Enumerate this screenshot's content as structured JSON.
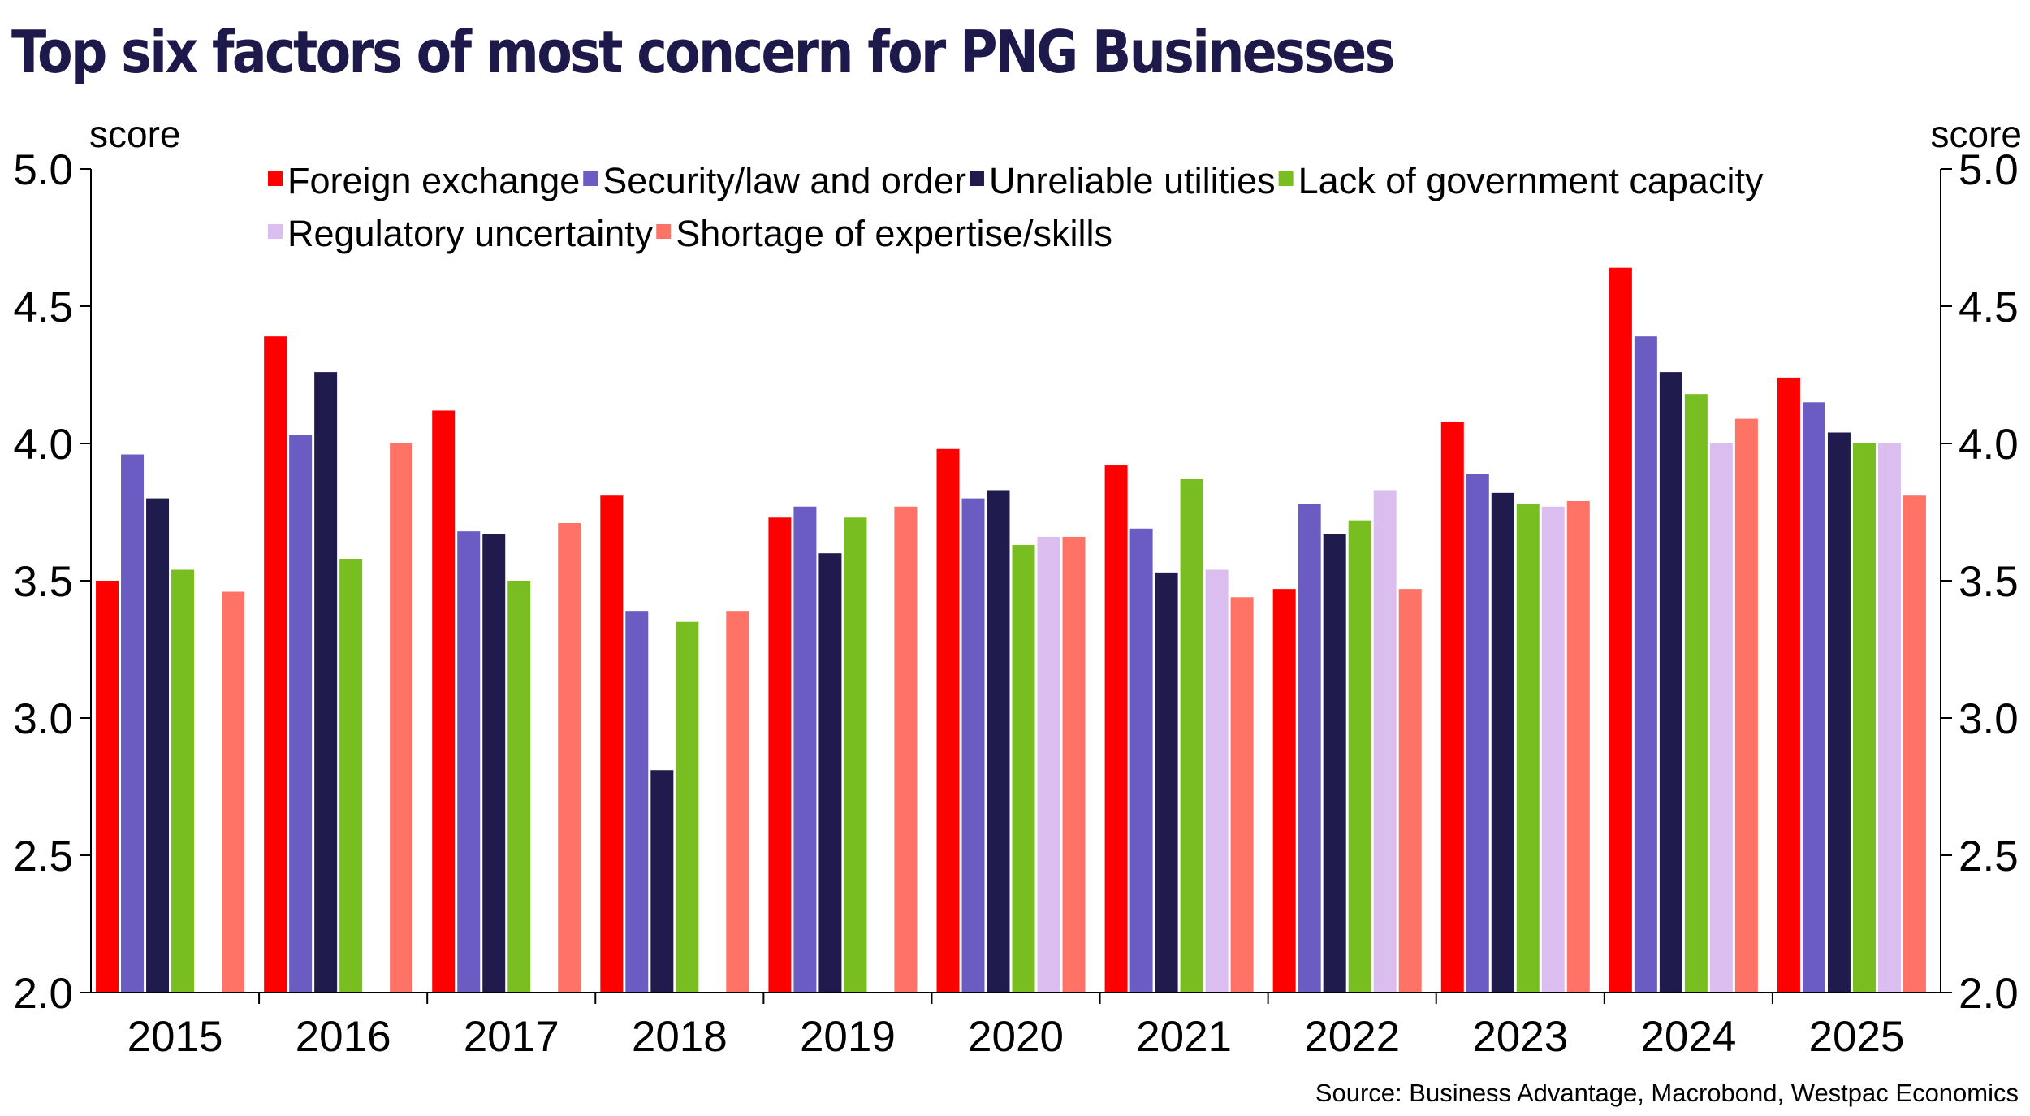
{
  "title": "Top six factors of most concern for PNG Businesses",
  "source": "Source: Business Advantage, Macrobond, Westpac Economics",
  "chart_data": {
    "type": "bar",
    "ylabel_left": "score",
    "ylabel_right": "score",
    "ylim": [
      2.0,
      5.0
    ],
    "yticks": [
      "2.0",
      "2.5",
      "3.0",
      "3.5",
      "4.0",
      "4.5",
      "5.0"
    ],
    "legend_position": "top",
    "categories": [
      "2015",
      "2016",
      "2017",
      "2018",
      "2019",
      "2020",
      "2021",
      "2022",
      "2023",
      "2024",
      "2025"
    ],
    "series": [
      {
        "name": "Foreign exchange",
        "color": "#ff0000",
        "values": [
          3.5,
          4.39,
          4.12,
          3.81,
          3.73,
          3.98,
          3.92,
          3.47,
          4.08,
          4.64,
          4.24
        ]
      },
      {
        "name": "Security/law and order",
        "color": "#6b5cc3",
        "values": [
          3.96,
          4.03,
          3.68,
          3.39,
          3.77,
          3.8,
          3.69,
          3.78,
          3.89,
          4.39,
          4.15
        ]
      },
      {
        "name": "Unreliable utilities",
        "color": "#1f1c4d",
        "values": [
          3.8,
          4.26,
          3.67,
          2.81,
          3.6,
          3.83,
          3.53,
          3.67,
          3.82,
          4.26,
          4.04
        ]
      },
      {
        "name": "Lack of government capacity",
        "color": "#78be21",
        "values": [
          3.54,
          3.58,
          3.5,
          3.35,
          3.73,
          3.63,
          3.87,
          3.72,
          3.78,
          4.18,
          4.0
        ]
      },
      {
        "name": "Regulatory uncertainty",
        "color": "#dcbdf0",
        "values": [
          null,
          null,
          null,
          null,
          null,
          3.66,
          3.54,
          3.83,
          3.77,
          4.0,
          4.0
        ]
      },
      {
        "name": "Shortage of expertise/skills",
        "color": "#ff7366",
        "values": [
          3.46,
          4.0,
          3.71,
          3.39,
          3.77,
          3.66,
          3.44,
          3.47,
          3.79,
          4.09,
          3.81
        ]
      }
    ]
  }
}
